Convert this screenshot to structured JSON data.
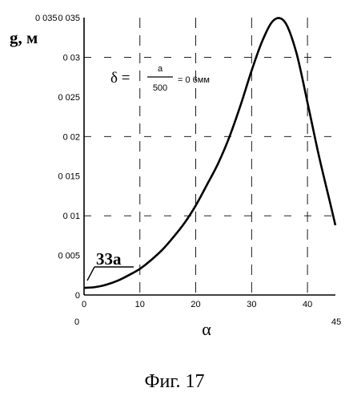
{
  "chart_data": {
    "type": "line",
    "ylabel": "g, м",
    "xlabel": "α",
    "xlim": [
      0,
      45
    ],
    "ylim": [
      0,
      0.035
    ],
    "x_ticks": [
      "0",
      "10",
      "20",
      "30",
      "40"
    ],
    "y_ticks": [
      "0",
      "0 005",
      "0 01",
      "0 015",
      "0 02",
      "0 025",
      "0 03",
      "0 035"
    ],
    "ymax_corner_label": "0 035",
    "xmin_corner_label": "0",
    "xmax_corner_label": "45",
    "grid": true,
    "annotation_formula": {
      "lhs": "δ =",
      "num": "a",
      "den": "500",
      "rhs": "= 0 6мм"
    },
    "annotation_label": "33а",
    "series": [
      {
        "x": [
          0,
          2,
          4,
          6,
          8,
          10,
          12,
          14,
          16,
          18,
          20,
          22,
          24,
          26,
          28,
          30,
          32,
          34,
          36,
          38,
          40,
          42,
          44,
          45
        ],
        "values": [
          0.0009,
          0.001,
          0.0013,
          0.0018,
          0.0025,
          0.0033,
          0.0044,
          0.0057,
          0.0073,
          0.0091,
          0.0113,
          0.0139,
          0.0166,
          0.0199,
          0.0239,
          0.0283,
          0.0322,
          0.0347,
          0.0344,
          0.0306,
          0.0243,
          0.0177,
          0.0118,
          0.0088
        ]
      }
    ],
    "caption": "Фиг. 17"
  }
}
